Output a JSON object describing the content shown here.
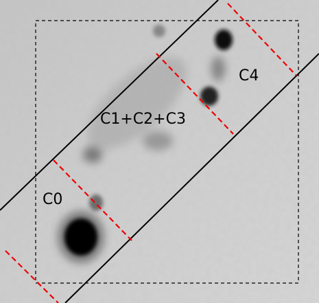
{
  "labels": {
    "c0": "C0",
    "c1_c2_c3": "C1+C2+C3",
    "c4": "C4"
  }
}
